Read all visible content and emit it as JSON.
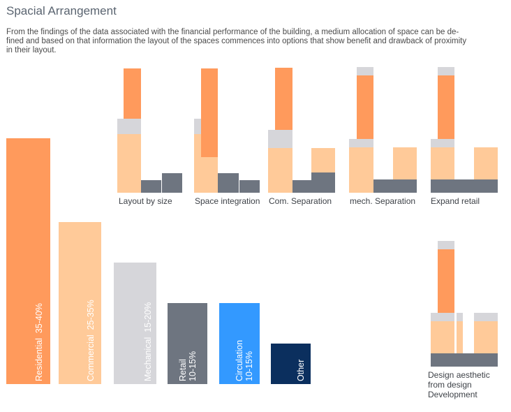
{
  "title": "Spacial Arrangement",
  "intro_lines": [
    "From the findings of the data associated with the financial performance of the building, a medium allocation of space can be de-",
    "fined and based on that information the layout of the spaces commences into options that show benefit and drawback of proximity",
    "in their layout."
  ],
  "colors": {
    "residential": "#FF9A5C",
    "commercial": "#FFCA99",
    "mechanical": "#D6D6DA",
    "retail": "#6E7580",
    "circulation": "#3399FF",
    "other": "#0B2F5E"
  },
  "allocation_bars": [
    {
      "name": "Residential",
      "range": "35-40%"
    },
    {
      "name": "Commercial",
      "range": "25-35%"
    },
    {
      "name": "Mechanical",
      "range": "15-20%"
    },
    {
      "name": "Retail",
      "range": "10-15%"
    },
    {
      "name": "Circulation",
      "range": "10-15%"
    },
    {
      "name": "Other",
      "range": ""
    }
  ],
  "layout_options": [
    {
      "caption": "Layout by size"
    },
    {
      "caption": "Space integration"
    },
    {
      "caption": "Com. Separation"
    },
    {
      "caption": "mech. Separation"
    },
    {
      "caption": "Expand retail"
    }
  ],
  "design_aesthetic_caption": [
    "Design aesthetic",
    "from design",
    "Development"
  ]
}
